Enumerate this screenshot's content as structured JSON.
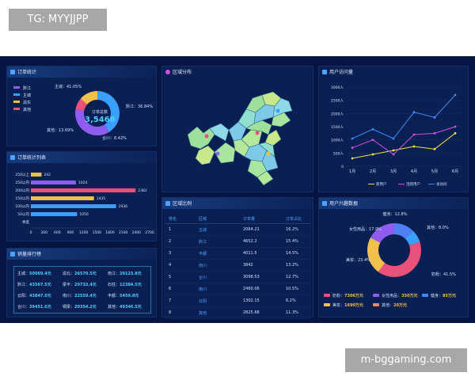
{
  "watermark_top": "TG: MYYJJPP",
  "watermark_bottom": "m-bggaming.com",
  "colors": {
    "bg": "#061541",
    "panel": "#0a1f52",
    "accent": "#4fa3ff"
  },
  "order_stats": {
    "title": "订单统计",
    "legend": [
      "黔江",
      "主城",
      "渝东",
      "其他"
    ],
    "center_label": "订单总数",
    "center_value": "3,5468",
    "slices": [
      {
        "label": "主城：41.05%",
        "value": 41.05,
        "color": "#3aa0ff"
      },
      {
        "label": "黔江：36.84%",
        "value": 36.84,
        "color": "#8f5cf0"
      },
      {
        "label": "合川：8.42%",
        "value": 8.42,
        "color": "#e8527a"
      },
      {
        "label": "其他：13.69%",
        "value": 13.69,
        "color": "#f0c04a"
      }
    ]
  },
  "order_list": {
    "title": "订单统计列表",
    "categories": [
      "250以上",
      "250以内",
      "200以内",
      "150以内",
      "100以内",
      "50以内",
      "季度"
    ],
    "values": [
      242,
      1024,
      2382,
      1435,
      1936,
      1050,
      null
    ],
    "colors": [
      "#f0c04a",
      "#8f5cf0",
      "#e8527a",
      "#f0c04a",
      "#3aa0ff",
      "#3aa0ff",
      "#3aa0ff"
    ],
    "xticks": [
      "0",
      "300",
      "600",
      "900",
      "1200",
      "1500",
      "1800",
      "2100",
      "2400",
      "2700"
    ]
  },
  "sales_rank": {
    "title": "销量排行榜",
    "rows": [
      [
        {
          "k": "主城：",
          "v": "50069.4元"
        },
        {
          "k": "渝北：",
          "v": "26570.5元"
        },
        {
          "k": "南江：",
          "v": "20123.8元"
        }
      ],
      [
        {
          "k": "黔江：",
          "v": "43567.5元"
        },
        {
          "k": "梁平：",
          "v": "29732.4元"
        },
        {
          "k": "石柱：",
          "v": "12384.5元"
        }
      ],
      [
        {
          "k": "云阳：",
          "v": "43847.0元"
        },
        {
          "k": "南川：",
          "v": "22559.4元"
        },
        {
          "k": "丰都：",
          "v": "5459.8元"
        }
      ],
      [
        {
          "k": "合川：",
          "v": "39451.6元"
        },
        {
          "k": "铜梁：",
          "v": "20354.2元"
        },
        {
          "k": "其他：",
          "v": "49346.5元"
        }
      ]
    ]
  },
  "region_map": {
    "title": "区域分布"
  },
  "region_table": {
    "title": "区域比例",
    "headers": [
      "排名",
      "区域",
      "订单量",
      "订单占比"
    ],
    "rows": [
      [
        "1",
        "主城",
        "2064.21",
        "16.2%"
      ],
      [
        "2",
        "黔江",
        "4652.2",
        "15.4%"
      ],
      [
        "3",
        "丰都",
        "4011.5",
        "14.5%"
      ],
      [
        "4",
        "南川",
        "3842",
        "13.2%"
      ],
      [
        "5",
        "合川",
        "3098.53",
        "12.7%"
      ],
      [
        "6",
        "南川",
        "2460.06",
        "10.5%"
      ],
      [
        "7",
        "云阳",
        "1302.15",
        "6.2%"
      ],
      [
        "8",
        "其他",
        "2825.68",
        "11.3%"
      ]
    ]
  },
  "user_trend": {
    "title": "用户访问量",
    "chart_data": {
      "type": "line",
      "categories": [
        "1月",
        "2月",
        "3月",
        "4月",
        "5月",
        "6月"
      ],
      "ylim": [
        0,
        3000
      ],
      "yticks": [
        "0",
        "500人",
        "1000人",
        "1500人",
        "2000人",
        "2500人",
        "3000人"
      ],
      "series": [
        {
          "name": "新用户",
          "values": [
            300,
            450,
            600,
            750,
            650,
            1250
          ],
          "color": "#f0e04a"
        },
        {
          "name": "活跃用户",
          "values": [
            700,
            1000,
            450,
            1200,
            1250,
            1500
          ],
          "color": "#d14fe0"
        },
        {
          "name": "总访问",
          "values": [
            1050,
            1400,
            1050,
            2050,
            1850,
            2700
          ],
          "color": "#3a8cff"
        }
      ]
    }
  },
  "user_pref": {
    "title": "用户兴趣数据",
    "slices": [
      {
        "label": "健身：12.8%",
        "value": 12.8,
        "color": "#4f7ff0"
      },
      {
        "label": "其他：8.0%",
        "value": 8.0,
        "color": "#3aa0ff"
      },
      {
        "label": "奶粉：41.5%",
        "value": 41.5,
        "color": "#e8527a"
      },
      {
        "label": "美妆：23.4%",
        "value": 23.4,
        "color": "#f0c04a"
      },
      {
        "label": "女性用品：17.9%",
        "value": 17.9,
        "color": "#8f5cf0"
      }
    ],
    "legend": [
      {
        "k": "奶粉：",
        "v": "7306万元",
        "color": "#e8527a"
      },
      {
        "k": "女性用品：",
        "v": "350万元",
        "color": "#8f5cf0"
      },
      {
        "k": "健身：",
        "v": "85万元",
        "color": "#3a8cff"
      },
      {
        "k": "美妆：",
        "v": "1690万元",
        "color": "#f0c04a"
      },
      {
        "k": "其他：",
        "v": "20万元",
        "color": "#f08a5a"
      }
    ]
  }
}
